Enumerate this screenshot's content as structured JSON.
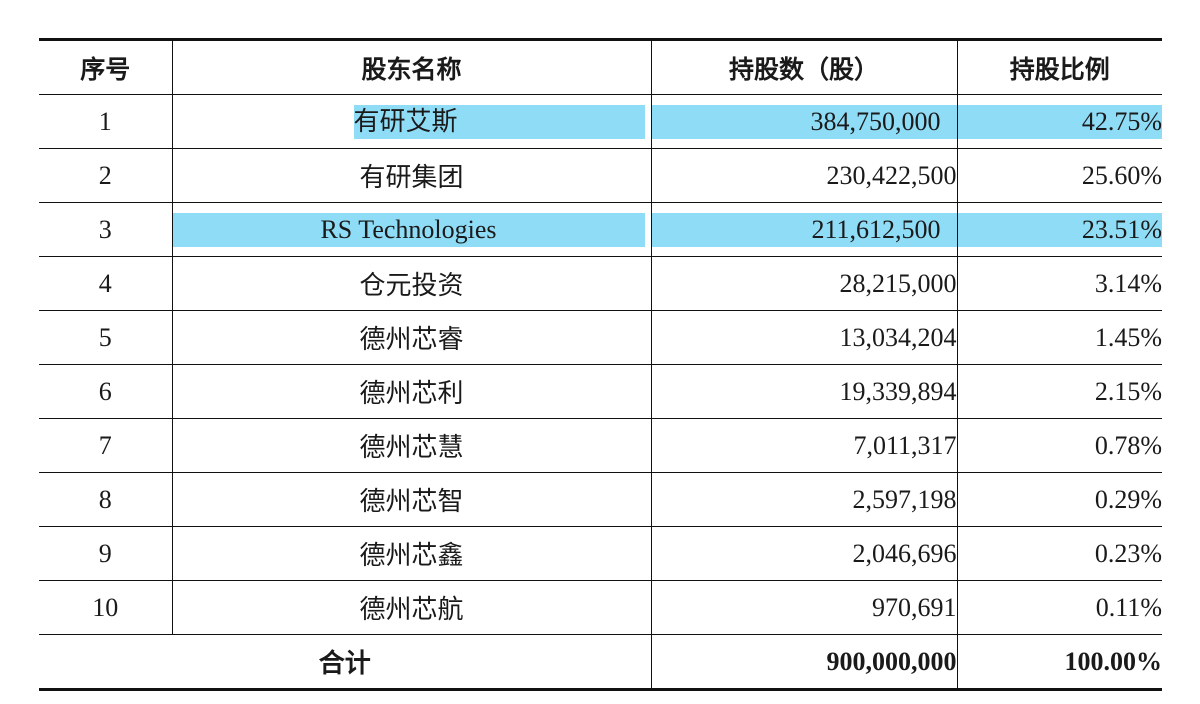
{
  "table": {
    "headers": {
      "no": "序号",
      "name": "股东名称",
      "qty": "持股数（股）",
      "pct": "持股比例"
    },
    "rows": [
      {
        "no": "1",
        "name": "有研艾斯",
        "qty": "384,750,000",
        "pct": "42.75%",
        "highlighted": true
      },
      {
        "no": "2",
        "name": "有研集团",
        "qty": "230,422,500",
        "pct": "25.60%",
        "highlighted": false
      },
      {
        "no": "3",
        "name": "RS Technologies",
        "qty": "211,612,500",
        "pct": "23.51%",
        "highlighted": true
      },
      {
        "no": "4",
        "name": "仓元投资",
        "qty": "28,215,000",
        "pct": "3.14%",
        "highlighted": false
      },
      {
        "no": "5",
        "name": "德州芯睿",
        "qty": "13,034,204",
        "pct": "1.45%",
        "highlighted": false
      },
      {
        "no": "6",
        "name": "德州芯利",
        "qty": "19,339,894",
        "pct": "2.15%",
        "highlighted": false
      },
      {
        "no": "7",
        "name": "德州芯慧",
        "qty": "7,011,317",
        "pct": "0.78%",
        "highlighted": false
      },
      {
        "no": "8",
        "name": "德州芯智",
        "qty": "2,597,198",
        "pct": "0.29%",
        "highlighted": false
      },
      {
        "no": "9",
        "name": "德州芯鑫",
        "qty": "2,046,696",
        "pct": "0.23%",
        "highlighted": false
      },
      {
        "no": "10",
        "name": "德州芯航",
        "qty": "970,691",
        "pct": "0.11%",
        "highlighted": false
      }
    ],
    "total": {
      "label": "合计",
      "qty": "900,000,000",
      "pct": "100.00%"
    },
    "highlight_color": "#8fdcf7"
  }
}
